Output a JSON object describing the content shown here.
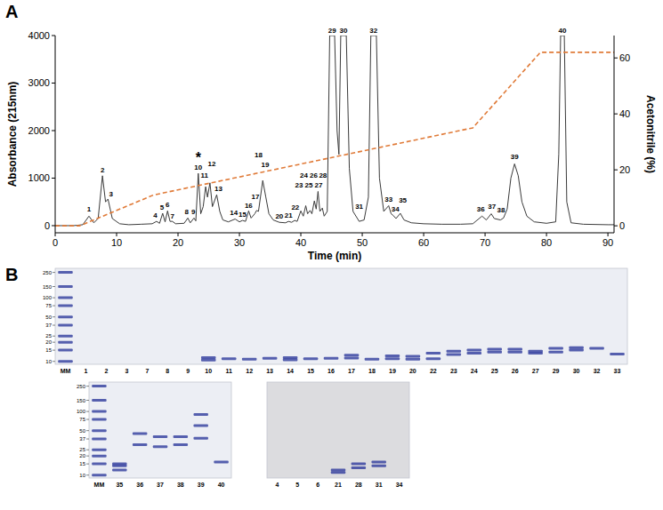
{
  "chart_data": [
    {
      "type": "line",
      "panel": "A",
      "x_label": "Time (min)",
      "y_label": "Absorbance (215nm)",
      "y2_label": "Acetonitrile (%)",
      "xlim": [
        0,
        91
      ],
      "xticks": [
        0,
        10,
        20,
        30,
        40,
        50,
        60,
        70,
        80,
        90
      ],
      "ylim": [
        -150,
        4000
      ],
      "yticks": [
        0,
        1000,
        2000,
        3000,
        4000
      ],
      "y2lim": [
        -2.5,
        68
      ],
      "y2ticks": [
        0,
        20,
        40,
        60
      ],
      "series": [
        {
          "color": "#3a3a3a",
          "x": [
            0,
            3,
            4.5,
            5.5,
            6.3,
            7,
            7.7,
            8.2,
            8.6,
            9.3,
            10.5,
            12,
            14,
            15.8,
            16.5,
            17,
            17.5,
            17.9,
            18.3,
            18.7,
            19.1,
            19.6,
            21,
            21.6,
            22,
            22.6,
            22.9,
            23.3,
            23.7,
            24.1,
            24.5,
            24.8,
            25.2,
            25.6,
            26.3,
            26.8,
            27.3,
            28.2,
            29.3,
            30,
            30.5,
            31,
            31.5,
            31.9,
            32.5,
            32.8,
            33.1,
            33.8,
            34.3,
            34.8,
            35.5,
            36.5,
            37.5,
            38,
            38.5,
            39,
            39.4,
            40,
            40.4,
            40.8,
            41.1,
            41.5,
            41.8,
            42.2,
            42.5,
            42.8,
            43.1,
            43.5,
            43.8,
            44.3,
            44.7,
            45.5,
            45.9,
            46.2,
            46.5,
            47.4,
            47.9,
            48.5,
            49.5,
            50.3,
            51,
            51.4,
            52.3,
            52.8,
            53.5,
            54.3,
            54.7,
            55,
            55.5,
            56.2,
            56.8,
            58,
            60,
            63,
            66,
            68,
            69.5,
            70.2,
            71,
            71.5,
            72.5,
            73,
            73.6,
            74.2,
            74.8,
            75.4,
            76,
            76.8,
            78,
            80,
            81.5,
            82,
            82.3,
            82.9,
            83.3,
            84,
            86,
            90,
            91
          ],
          "values": [
            0,
            0,
            20,
            200,
            60,
            150,
            1050,
            500,
            560,
            150,
            40,
            20,
            30,
            40,
            90,
            50,
            260,
            80,
            310,
            90,
            90,
            40,
            50,
            160,
            60,
            160,
            100,
            1100,
            250,
            400,
            820,
            600,
            900,
            400,
            650,
            300,
            120,
            80,
            140,
            80,
            110,
            90,
            310,
            160,
            250,
            320,
            300,
            950,
            600,
            250,
            120,
            70,
            60,
            90,
            70,
            110,
            90,
            310,
            200,
            420,
            250,
            320,
            250,
            520,
            350,
            720,
            300,
            370,
            200,
            300,
            4000,
            4000,
            2000,
            1500,
            4000,
            4000,
            1200,
            300,
            90,
            120,
            600,
            4000,
            4000,
            1000,
            300,
            420,
            250,
            220,
            150,
            260,
            120,
            60,
            40,
            30,
            30,
            40,
            200,
            120,
            250,
            150,
            120,
            160,
            350,
            1000,
            1300,
            1050,
            500,
            200,
            80,
            50,
            80,
            1500,
            4000,
            4000,
            500,
            60,
            30,
            20,
            20
          ]
        },
        {
          "color": "#e07b39",
          "line_style": "dashed",
          "axis": "y2",
          "x": [
            0,
            4,
            16,
            68,
            79,
            91
          ],
          "values": [
            0,
            0,
            11,
            35,
            62,
            62
          ]
        }
      ],
      "annotations": [
        {
          "text": "1",
          "x": 5.5,
          "y": 300
        },
        {
          "text": "2",
          "x": 7.7,
          "y": 1130
        },
        {
          "text": "3",
          "x": 9.1,
          "y": 620
        },
        {
          "text": "4",
          "x": 16.3,
          "y": 170
        },
        {
          "text": "5",
          "x": 17.4,
          "y": 340
        },
        {
          "text": "6",
          "x": 18.3,
          "y": 390
        },
        {
          "text": "7",
          "x": 19.1,
          "y": 150
        },
        {
          "text": "8",
          "x": 21.4,
          "y": 240
        },
        {
          "text": "9",
          "x": 22.5,
          "y": 240
        },
        {
          "text": "10",
          "x": 23.3,
          "y": 1180
        },
        {
          "text": "*",
          "x": 23.3,
          "y": 1330
        },
        {
          "text": "11",
          "x": 24.3,
          "y": 1000
        },
        {
          "text": "12",
          "x": 25.5,
          "y": 1250
        },
        {
          "text": "13",
          "x": 26.6,
          "y": 720
        },
        {
          "text": "14",
          "x": 29.1,
          "y": 230
        },
        {
          "text": "15",
          "x": 30.5,
          "y": 180
        },
        {
          "text": "16",
          "x": 31.5,
          "y": 380
        },
        {
          "text": "17",
          "x": 32.6,
          "y": 560
        },
        {
          "text": "18",
          "x": 33.1,
          "y": 1430
        },
        {
          "text": "19",
          "x": 34.2,
          "y": 1240
        },
        {
          "text": "20",
          "x": 36.5,
          "y": 150
        },
        {
          "text": "21",
          "x": 38,
          "y": 170
        },
        {
          "text": "22",
          "x": 39.1,
          "y": 330
        },
        {
          "text": "23",
          "x": 39.7,
          "y": 800
        },
        {
          "text": "24",
          "x": 40.5,
          "y": 1000
        },
        {
          "text": "25",
          "x": 41.3,
          "y": 800
        },
        {
          "text": "26",
          "x": 42.1,
          "y": 1000
        },
        {
          "text": "27",
          "x": 42.9,
          "y": 800
        },
        {
          "text": "28",
          "x": 43.6,
          "y": 1000
        },
        {
          "text": "29",
          "x": 45.1,
          "y": 4060
        },
        {
          "text": "30",
          "x": 46.95,
          "y": 4060
        },
        {
          "text": "31",
          "x": 49.5,
          "y": 360
        },
        {
          "text": "32",
          "x": 51.85,
          "y": 4060
        },
        {
          "text": "33",
          "x": 54.3,
          "y": 500
        },
        {
          "text": "34",
          "x": 55.4,
          "y": 300
        },
        {
          "text": "35",
          "x": 56.6,
          "y": 480
        },
        {
          "text": "36",
          "x": 69.3,
          "y": 300
        },
        {
          "text": "37",
          "x": 71.1,
          "y": 360
        },
        {
          "text": "38",
          "x": 72.6,
          "y": 280
        },
        {
          "text": "39",
          "x": 74.8,
          "y": 1400
        },
        {
          "text": "40",
          "x": 82.6,
          "y": 4060
        }
      ]
    },
    {
      "type": "gel",
      "panel": "B",
      "log": "y",
      "ylim": [
        9,
        290
      ],
      "yticks": [
        250,
        150,
        100,
        75,
        50,
        37,
        25,
        20,
        15,
        10
      ],
      "color": "#2f3b9c",
      "categories": [
        "MM",
        "1",
        "2",
        "3",
        "7",
        "8",
        "9",
        "10",
        "11",
        "12",
        "13",
        "14",
        "15",
        "16",
        "17",
        "18",
        "19",
        "20",
        "22",
        "23",
        "24",
        "25",
        "26",
        "27",
        "29",
        "30",
        "32",
        "33"
      ],
      "bands": [
        [
          250,
          150,
          100,
          75,
          50,
          37,
          25,
          20,
          15,
          10
        ],
        [],
        [],
        [],
        [],
        [],
        [],
        [
          11.5,
          10.5
        ],
        [
          11
        ],
        [
          10.8
        ],
        [
          11.2
        ],
        [
          11.5,
          10.6
        ],
        [
          11
        ],
        [
          11.2
        ],
        [
          12.5,
          11.3
        ],
        [
          10.8
        ],
        [
          12.2,
          11
        ],
        [
          12,
          10.8
        ],
        [
          13.5,
          11
        ],
        [
          14.5,
          12.8
        ],
        [
          15,
          13.5
        ],
        [
          15.5,
          14
        ],
        [
          15.5,
          14
        ],
        [
          14.5,
          13.5
        ],
        [
          16,
          14
        ],
        [
          16.5,
          15
        ],
        [
          16
        ],
        [
          13
        ]
      ]
    },
    {
      "type": "gel",
      "log": "y",
      "ylim": [
        9,
        290
      ],
      "yticks": [
        250,
        150,
        100,
        75,
        50,
        37,
        25,
        20,
        15,
        10
      ],
      "color": "#2f3b9c",
      "categories": [
        "MM",
        "35",
        "36",
        "37",
        "38",
        "39",
        "40"
      ],
      "bands": [
        [
          250,
          150,
          100,
          75,
          50,
          37,
          25,
          20,
          15,
          10
        ],
        [
          15,
          14,
          12
        ],
        [
          45,
          30
        ],
        [
          40,
          28
        ],
        [
          40,
          30
        ],
        [
          90,
          60,
          38
        ],
        [
          16
        ]
      ]
    },
    {
      "type": "gel",
      "log": "y",
      "tick_labels": "x",
      "ylim": [
        9,
        290
      ],
      "color": "#2f3b9c",
      "categories": [
        "4",
        "5",
        "6",
        "21",
        "28",
        "31",
        "34"
      ],
      "bands": [
        [],
        [],
        [],
        [
          12,
          11
        ],
        [
          15,
          13
        ],
        [
          16,
          14
        ],
        []
      ]
    }
  ]
}
